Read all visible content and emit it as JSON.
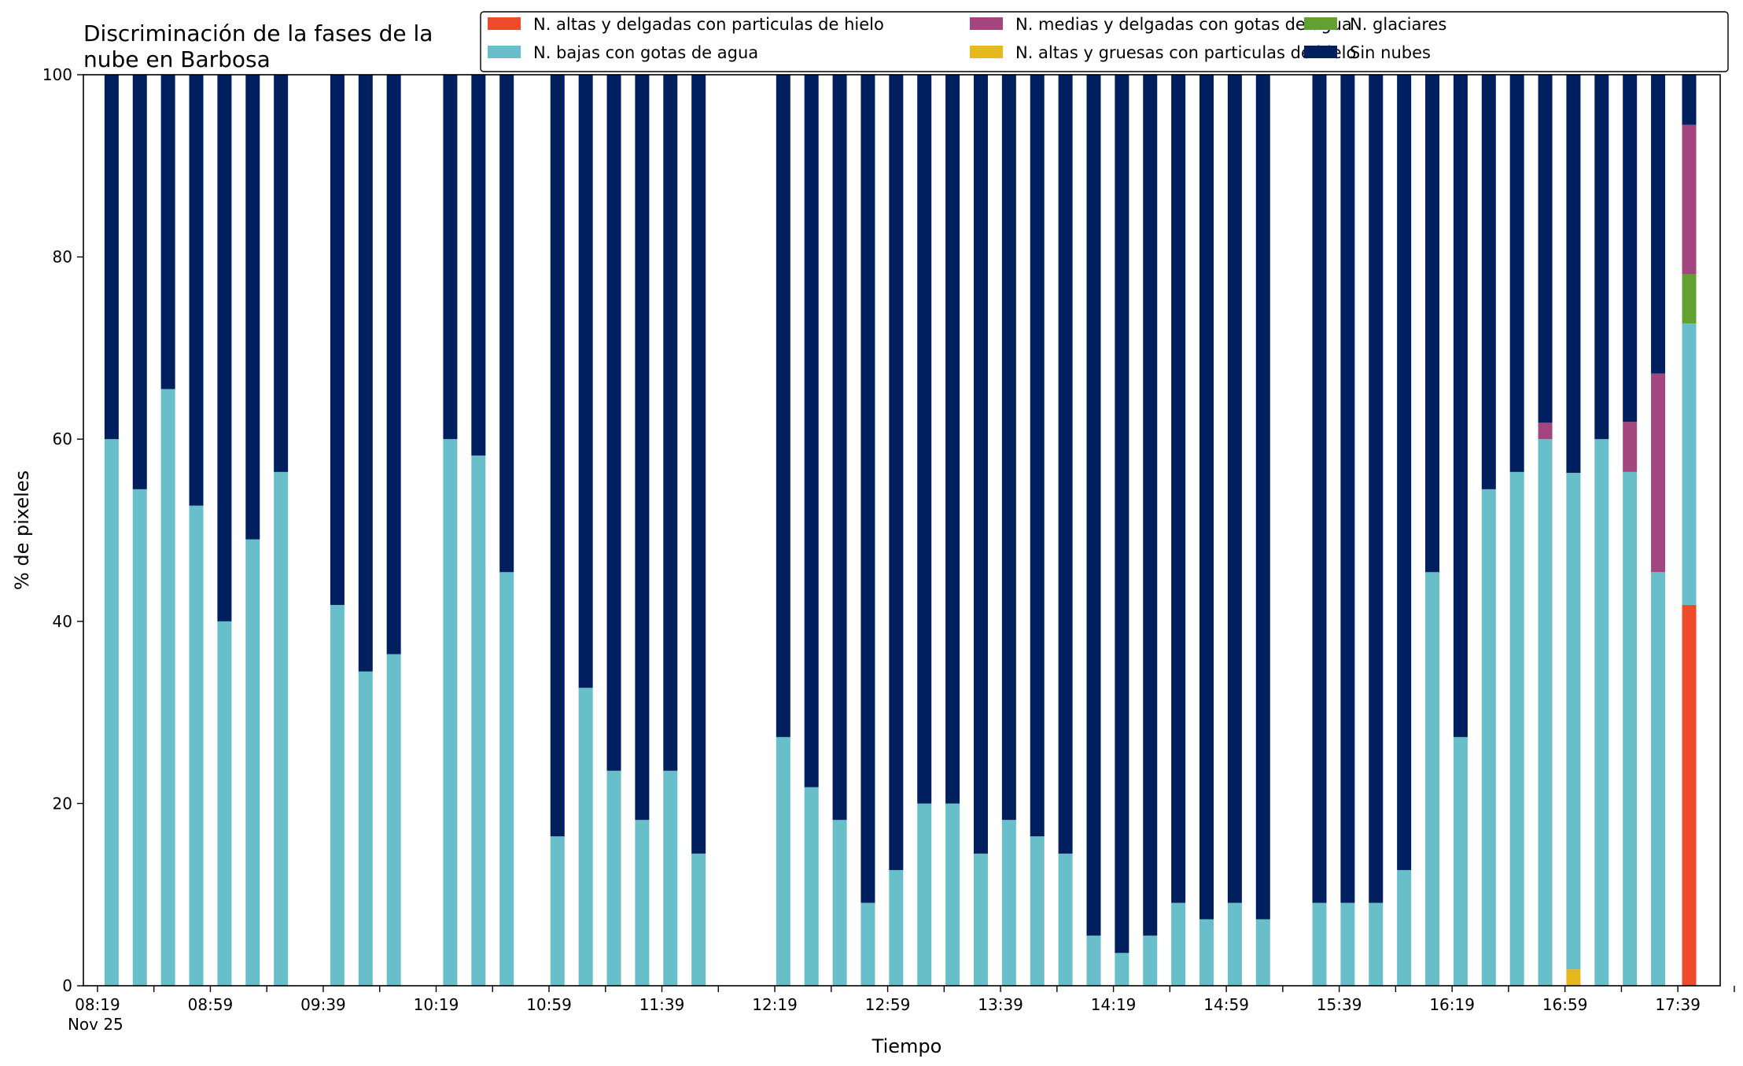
{
  "chart_data": {
    "type": "bar",
    "stacked": true,
    "title_lines": [
      "Discriminación de la fases de la",
      "nube en Barbosa"
    ],
    "xlabel": "Tiempo",
    "ylabel": "% de pixeles",
    "ylim": [
      0,
      100
    ],
    "yticks": [
      0,
      20,
      40,
      60,
      80,
      100
    ],
    "x_range": [
      "08:14",
      "17:54"
    ],
    "x_tick_times": [
      "08:19",
      "08:39",
      "08:59",
      "09:19",
      "09:39",
      "09:59",
      "10:19",
      "10:39",
      "10:59",
      "11:19",
      "11:39",
      "11:59",
      "12:19",
      "12:39",
      "12:59",
      "13:19",
      "13:39",
      "13:59",
      "14:19",
      "14:39",
      "14:59",
      "15:19",
      "15:39",
      "15:59",
      "16:19",
      "16:39",
      "16:59",
      "17:19",
      "17:39",
      "17:59"
    ],
    "x_tick_labels": [
      {
        "time": "08:19",
        "text": "08:19",
        "sub": "Nov 25"
      },
      {
        "time": "08:59",
        "text": "08:59"
      },
      {
        "time": "09:39",
        "text": "09:39"
      },
      {
        "time": "10:19",
        "text": "10:19"
      },
      {
        "time": "10:59",
        "text": "10:59"
      },
      {
        "time": "11:39",
        "text": "11:39"
      },
      {
        "time": "12:19",
        "text": "12:19"
      },
      {
        "time": "12:59",
        "text": "12:59"
      },
      {
        "time": "13:39",
        "text": "13:39"
      },
      {
        "time": "14:19",
        "text": "14:19"
      },
      {
        "time": "14:59",
        "text": "14:59"
      },
      {
        "time": "15:39",
        "text": "15:39"
      },
      {
        "time": "16:19",
        "text": "16:19"
      },
      {
        "time": "16:59",
        "text": "16:59"
      },
      {
        "time": "17:39",
        "text": "17:39"
      }
    ],
    "times": [
      "08:24",
      "08:34",
      "08:44",
      "08:54",
      "09:04",
      "09:14",
      "09:24",
      "09:44",
      "09:54",
      "10:04",
      "10:24",
      "10:34",
      "10:44",
      "11:02",
      "11:12",
      "11:22",
      "11:32",
      "11:42",
      "11:52",
      "12:22",
      "12:32",
      "12:42",
      "12:52",
      "13:02",
      "13:12",
      "13:22",
      "13:32",
      "13:42",
      "13:52",
      "14:02",
      "14:12",
      "14:22",
      "14:32",
      "14:42",
      "14:52",
      "15:02",
      "15:12",
      "15:32",
      "15:42",
      "15:52",
      "16:02",
      "16:12",
      "16:22",
      "16:32",
      "16:42",
      "16:52",
      "17:02",
      "17:12",
      "17:22",
      "17:32",
      "17:43"
    ],
    "legend_order": [
      0,
      2,
      4,
      1,
      3,
      5
    ],
    "series": [
      {
        "name": "N. altas y delgadas con particulas de hielo",
        "color": "#ef4a2c",
        "values": [
          0,
          0,
          0,
          0,
          0,
          0,
          0,
          0,
          0,
          0,
          0,
          0,
          0,
          0,
          0,
          0,
          0,
          0,
          0,
          0,
          0,
          0,
          0,
          0,
          0,
          0,
          0,
          0,
          0,
          0,
          0,
          0,
          0,
          0,
          0,
          0,
          0,
          0,
          0,
          0,
          0,
          0,
          0,
          0,
          0,
          0,
          0,
          0,
          0,
          0,
          41.8
        ]
      },
      {
        "name": "N. altas y gruesas con particulas de hielo",
        "color": "#e6b81e",
        "values": [
          0,
          0,
          0,
          0,
          0,
          0,
          0,
          0,
          0,
          0,
          0,
          0,
          0,
          0,
          0,
          0,
          0,
          0,
          0,
          0,
          0,
          0,
          0,
          0,
          0,
          0,
          0,
          0,
          0,
          0,
          0,
          0,
          0,
          0,
          0,
          0,
          0,
          0,
          0,
          0,
          0,
          0,
          0,
          0,
          0,
          0,
          1.8,
          0,
          0,
          0,
          0
        ]
      },
      {
        "name": "N. bajas con gotas de agua",
        "color": "#68bfca",
        "values": [
          60,
          54.5,
          65.5,
          52.7,
          40,
          49,
          56.4,
          41.8,
          34.5,
          36.4,
          60,
          58.2,
          45.4,
          16.4,
          32.7,
          23.6,
          18.2,
          23.6,
          14.5,
          27.3,
          21.8,
          18.2,
          9.1,
          12.7,
          20,
          20,
          14.5,
          18.2,
          16.4,
          14.5,
          5.5,
          3.6,
          5.5,
          9.1,
          7.3,
          9.1,
          7.3,
          9.1,
          9.1,
          9.1,
          12.7,
          45.4,
          27.3,
          54.5,
          56.4,
          60,
          54.5,
          60,
          56.4,
          45.4,
          30.9
        ]
      },
      {
        "name": "N. glaciares",
        "color": "#62a130",
        "values": [
          0,
          0,
          0,
          0,
          0,
          0,
          0,
          0,
          0,
          0,
          0,
          0,
          0,
          0,
          0,
          0,
          0,
          0,
          0,
          0,
          0,
          0,
          0,
          0,
          0,
          0,
          0,
          0,
          0,
          0,
          0,
          0,
          0,
          0,
          0,
          0,
          0,
          0,
          0,
          0,
          0,
          0,
          0,
          0,
          0,
          0,
          0,
          0,
          0,
          0,
          5.4
        ]
      },
      {
        "name": "N. medias y delgadas con gotas de agua",
        "color": "#a3457e",
        "values": [
          0,
          0,
          0,
          0,
          0,
          0,
          0,
          0,
          0,
          0,
          0,
          0,
          0,
          0,
          0,
          0,
          0,
          0,
          0,
          0,
          0,
          0,
          0,
          0,
          0,
          0,
          0,
          0,
          0,
          0,
          0,
          0,
          0,
          0,
          0,
          0,
          0,
          0,
          0,
          0,
          0,
          0,
          0,
          0,
          0,
          1.8,
          0,
          0,
          5.5,
          21.8,
          16.4
        ]
      },
      {
        "name": "Sin nubes",
        "color": "#001f5f",
        "values": [
          40,
          45.5,
          34.5,
          47.3,
          60,
          51,
          43.6,
          58.2,
          65.5,
          63.6,
          40,
          41.8,
          54.6,
          83.6,
          67.3,
          76.4,
          81.8,
          76.4,
          85.5,
          72.7,
          78.2,
          81.8,
          90.9,
          87.3,
          80,
          80,
          85.5,
          81.8,
          83.6,
          85.5,
          94.5,
          96.4,
          94.5,
          90.9,
          92.7,
          90.9,
          92.7,
          90.9,
          90.9,
          90.9,
          87.3,
          54.6,
          72.7,
          45.5,
          43.6,
          38.2,
          43.7,
          40,
          38.1,
          32.8,
          5.5
        ]
      }
    ],
    "legend_position": "top-right",
    "grid": false
  }
}
